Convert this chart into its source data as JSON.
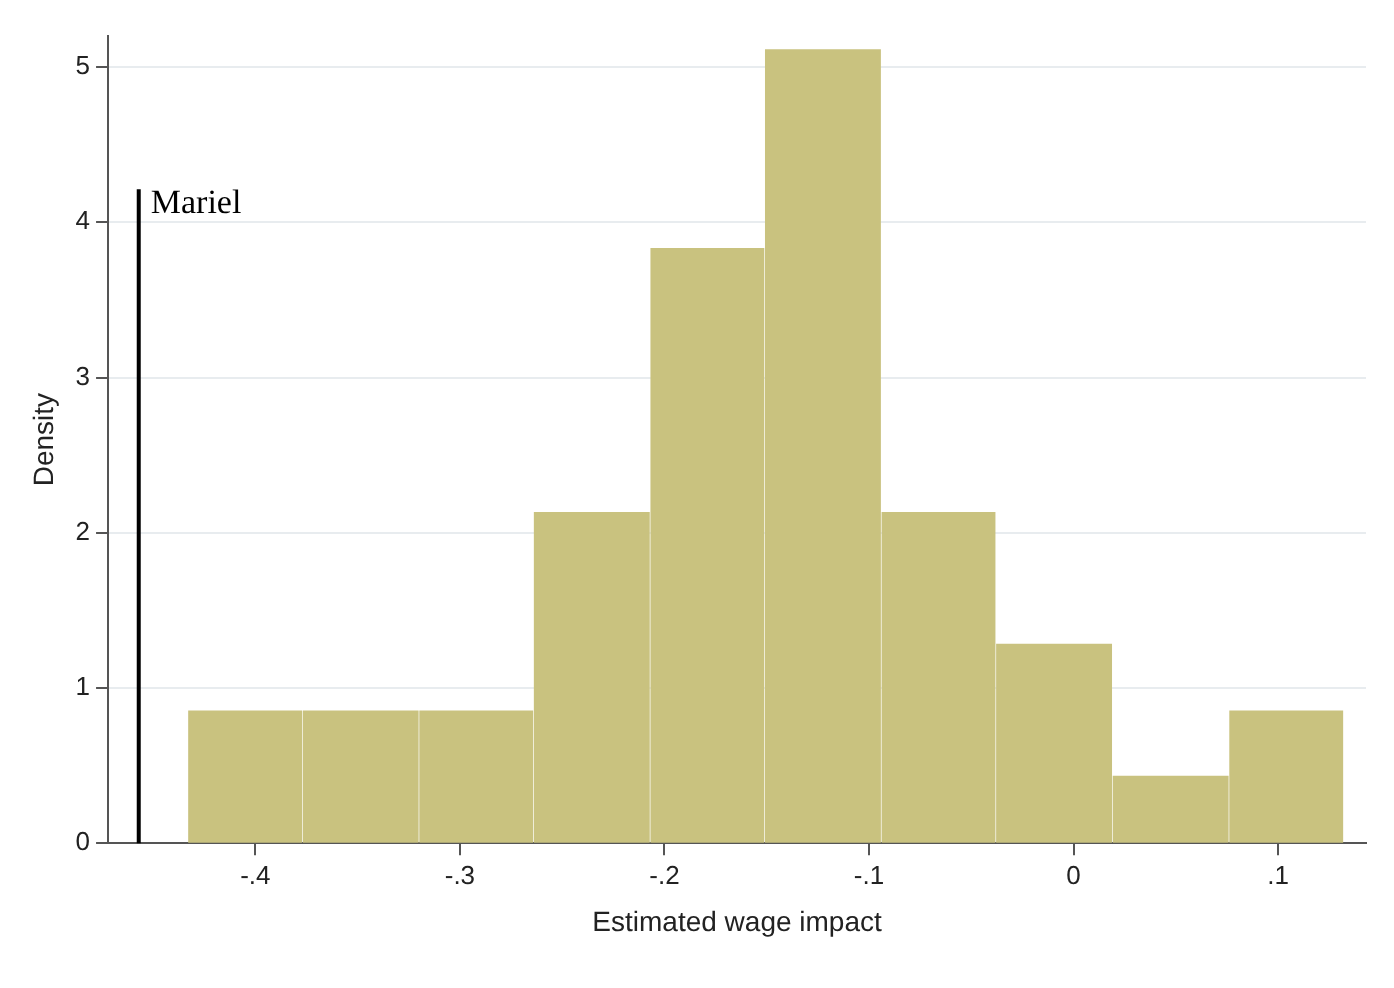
{
  "chart_data": {
    "type": "histogram",
    "xlabel": "Estimated wage impact",
    "ylabel": "Density",
    "bins": [
      -0.433,
      -0.377,
      -0.32,
      -0.264,
      -0.207,
      -0.151,
      -0.094,
      -0.038,
      0.019,
      0.076,
      0.132
    ],
    "values": [
      0.85,
      0.85,
      0.85,
      2.13,
      3.83,
      5.11,
      2.13,
      1.28,
      0.43,
      0.85
    ],
    "color": "#c9c27f",
    "xlim": [
      -0.472,
      0.143
    ],
    "ylim": [
      0,
      5.2
    ],
    "xticks": [
      {
        "value": -0.4,
        "label": "-.4"
      },
      {
        "value": -0.3,
        "label": "-.3"
      },
      {
        "value": -0.2,
        "label": "-.2"
      },
      {
        "value": -0.1,
        "label": "-.1"
      },
      0,
      {
        "value": 0.1,
        "label": ".1"
      }
    ],
    "yticks": [
      0,
      1,
      2,
      3,
      4,
      5
    ],
    "grid": "y",
    "legend": false,
    "ref_lines": [
      {
        "axis": "x",
        "value": -0.457,
        "label": "Mariel",
        "color": "#000000"
      }
    ]
  }
}
